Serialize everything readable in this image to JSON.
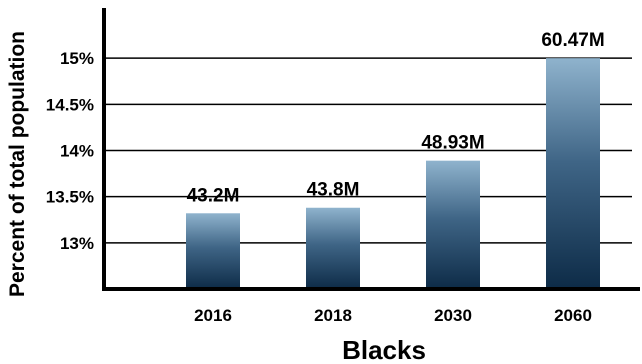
{
  "chart_data": {
    "type": "bar",
    "categories": [
      "2016",
      "2018",
      "2030",
      "2060"
    ],
    "values": [
      13.32,
      13.38,
      13.89,
      15.0
    ],
    "data_labels": [
      "43.2M",
      "43.8M",
      "48.93M",
      "60.47M"
    ],
    "title": "",
    "xlabel": "Blacks",
    "ylabel": "Percent of total population",
    "y_ticks": [
      13,
      13.5,
      14,
      14.5,
      15
    ],
    "y_tick_labels": [
      "13%",
      "13.5%",
      "14%",
      "14.5%",
      "15%"
    ],
    "ylim": [
      12.5,
      15.5
    ],
    "grid": true,
    "legend": "none",
    "colors": {
      "bar_top": "#8fb3cd",
      "bar_bottom": "#0d2b47",
      "grid": "#000000",
      "axis": "#000000"
    }
  }
}
